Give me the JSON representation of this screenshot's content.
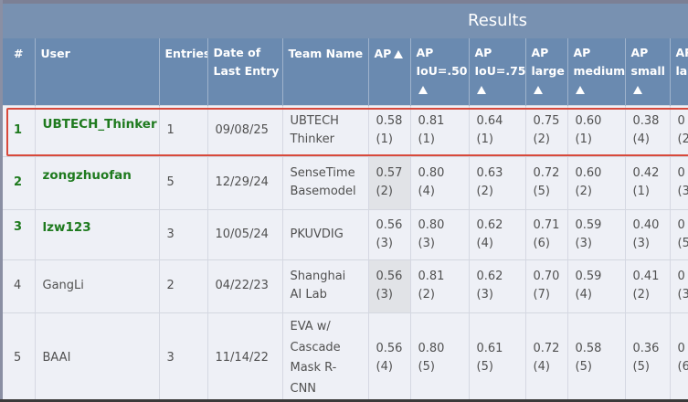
{
  "results_title": "Results",
  "columns": {
    "rank": "#",
    "user": "User",
    "entries": "Entries",
    "date_line1": "Date of",
    "date_line2": "Last Entry",
    "team": "Team Name",
    "ap": "AP",
    "ap50_l1": "AP",
    "ap50_l2": "IoU=.50",
    "ap75_l1": "AP",
    "ap75_l2": "IoU=.75",
    "apl_l1": "AP",
    "apl_l2": "large",
    "apm_l1": "AP",
    "apm_l2": "medium",
    "aps_l1": "AP",
    "aps_l2": "small",
    "arl_l1": "AR",
    "arl_l2": "la"
  },
  "rows": [
    {
      "rank": "1",
      "user": "UBTECH_Thinker",
      "entries": "1",
      "date": "09/08/25",
      "team_l1": "UBTECH",
      "team_l2": "Thinker",
      "ap": "0.58",
      "ap_r": "(1)",
      "ap50": "0.81",
      "ap50_r": "(1)",
      "ap75": "0.64",
      "ap75_r": "(1)",
      "apl": "0.75",
      "apl_r": "(2)",
      "apm": "0.60",
      "apm_r": "(1)",
      "aps": "0.38",
      "aps_r": "(4)",
      "last": "0",
      "last_r": "(2"
    },
    {
      "rank": "2",
      "user": "zongzhuofan",
      "entries": "5",
      "date": "12/29/24",
      "team_l1": "SenseTime",
      "team_l2": "Basemodel",
      "ap": "0.57",
      "ap_r": "(2)",
      "ap50": "0.80",
      "ap50_r": "(4)",
      "ap75": "0.63",
      "ap75_r": "(2)",
      "apl": "0.72",
      "apl_r": "(5)",
      "apm": "0.60",
      "apm_r": "(2)",
      "aps": "0.42",
      "aps_r": "(1)",
      "last": "0",
      "last_r": "(3"
    },
    {
      "rank": "3",
      "user": "lzw123",
      "entries": "3",
      "date": "10/05/24",
      "team_l1": "PKUVDIG",
      "team_l2": "",
      "ap": "0.56",
      "ap_r": "(3)",
      "ap50": "0.80",
      "ap50_r": "(3)",
      "ap75": "0.62",
      "ap75_r": "(4)",
      "apl": "0.71",
      "apl_r": "(6)",
      "apm": "0.59",
      "apm_r": "(3)",
      "aps": "0.40",
      "aps_r": "(3)",
      "last": "0",
      "last_r": "(5"
    },
    {
      "rank": "4",
      "user": "GangLi",
      "entries": "2",
      "date": "04/22/23",
      "team_l1": "Shanghai",
      "team_l2": "AI Lab",
      "ap": "0.56",
      "ap_r": "(3)",
      "ap50": "0.81",
      "ap50_r": "(2)",
      "ap75": "0.62",
      "ap75_r": "(3)",
      "apl": "0.70",
      "apl_r": "(7)",
      "apm": "0.59",
      "apm_r": "(4)",
      "aps": "0.41",
      "aps_r": "(2)",
      "last": "0",
      "last_r": "(3"
    },
    {
      "rank": "5",
      "user": "BAAI",
      "entries": "3",
      "date": "11/14/22",
      "team_l1": "EVA w/",
      "team_l2": "Cascade",
      "team_l3": "Mask R-",
      "team_l4": "CNN",
      "ap": "0.56",
      "ap_r": "(4)",
      "ap50": "0.80",
      "ap50_r": "(5)",
      "ap75": "0.61",
      "ap75_r": "(5)",
      "apl": "0.72",
      "apl_r": "(4)",
      "apm": "0.58",
      "apm_r": "(5)",
      "aps": "0.36",
      "aps_r": "(5)",
      "last": "0",
      "last_r": "(6"
    }
  ]
}
